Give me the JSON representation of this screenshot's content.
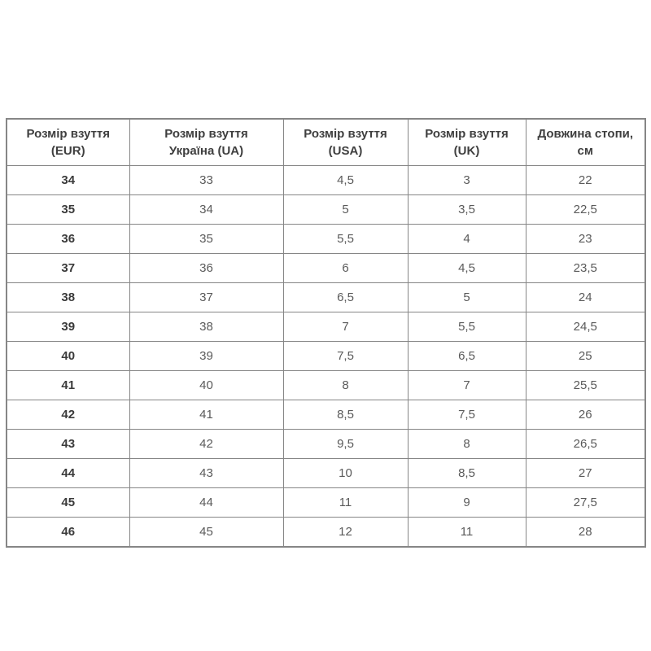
{
  "colors": {
    "background": "#ffffff",
    "border": "#868686",
    "header_text": "#3f3f3f",
    "eur_column_text": "#3a3a3a",
    "data_text": "#5a5a5a"
  },
  "header": {
    "cells": [
      {
        "line1": "Розмір взуття",
        "line2": "(EUR)"
      },
      {
        "line1": "Розмір взуття",
        "line2": "Україна (UA)"
      },
      {
        "line1": "Розмір взуття",
        "line2": "(USA)"
      },
      {
        "line1": "Розмір взуття",
        "line2": "(UK)"
      },
      {
        "line1": "Довжина стопи,",
        "line2": "см"
      }
    ]
  },
  "chart_data": {
    "type": "table",
    "columns": [
      "Розмір взуття (EUR)",
      "Розмір взуття Україна (UA)",
      "Розмір взуття (USA)",
      "Розмір взуття (UK)",
      "Довжина стопи, см"
    ],
    "rows": [
      [
        "34",
        "33",
        "4,5",
        "3",
        "22"
      ],
      [
        "35",
        "34",
        "5",
        "3,5",
        "22,5"
      ],
      [
        "36",
        "35",
        "5,5",
        "4",
        "23"
      ],
      [
        "37",
        "36",
        "6",
        "4,5",
        "23,5"
      ],
      [
        "38",
        "37",
        "6,5",
        "5",
        "24"
      ],
      [
        "39",
        "38",
        "7",
        "5,5",
        "24,5"
      ],
      [
        "40",
        "39",
        "7,5",
        "6,5",
        "25"
      ],
      [
        "41",
        "40",
        "8",
        "7",
        "25,5"
      ],
      [
        "42",
        "41",
        "8,5",
        "7,5",
        "26"
      ],
      [
        "43",
        "42",
        "9,5",
        "8",
        "26,5"
      ],
      [
        "44",
        "43",
        "10",
        "8,5",
        "27"
      ],
      [
        "45",
        "44",
        "11",
        "9",
        "27,5"
      ],
      [
        "46",
        "45",
        "12",
        "11",
        "28"
      ]
    ]
  }
}
